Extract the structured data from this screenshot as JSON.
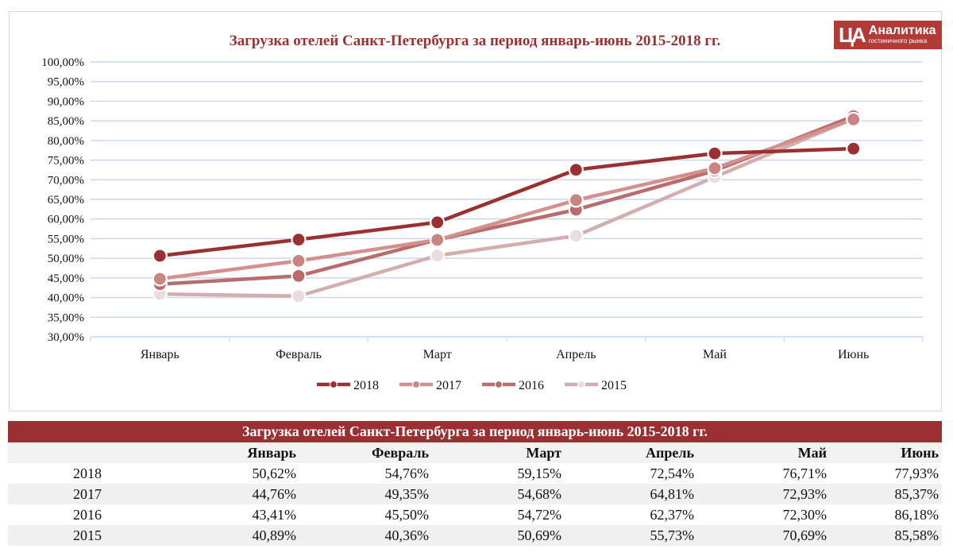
{
  "logo": {
    "mark": "ЦА",
    "title": "Аналитика",
    "subtitle": "гостиничного рынка"
  },
  "chart_data": {
    "type": "line",
    "title": "Загрузка отелей Санкт-Петербурга за период январь-июнь 2015-2018 гг.",
    "categories": [
      "Январь",
      "Февраль",
      "Март",
      "Апрель",
      "Май",
      "Июнь"
    ],
    "ylim": [
      30,
      100
    ],
    "ytick_step": 5,
    "ytick_labels": [
      "30,00%",
      "35,00%",
      "40,00%",
      "45,00%",
      "50,00%",
      "55,00%",
      "60,00%",
      "65,00%",
      "70,00%",
      "75,00%",
      "80,00%",
      "85,00%",
      "90,00%",
      "95,00%",
      "100,00%"
    ],
    "grid": true,
    "legend_position": "bottom",
    "series": [
      {
        "name": "2015",
        "color": "#d3aeae",
        "marker": "#e9dede",
        "values": [
          40.89,
          40.36,
          50.69,
          55.73,
          70.69,
          85.58
        ]
      },
      {
        "name": "2016",
        "color": "#b86c6c",
        "marker": "#b86c6c",
        "values": [
          43.41,
          45.5,
          54.72,
          62.37,
          72.3,
          86.18
        ]
      },
      {
        "name": "2017",
        "color": "#d4908c",
        "marker": "#c88582",
        "values": [
          44.76,
          49.35,
          54.68,
          64.81,
          72.93,
          85.37
        ]
      },
      {
        "name": "2018",
        "color": "#9b3033",
        "marker": "#9b3033",
        "values": [
          50.62,
          54.76,
          59.15,
          72.54,
          76.71,
          77.93
        ]
      }
    ],
    "legend_order": [
      3,
      2,
      1,
      0
    ]
  },
  "table": {
    "caption": "Загрузка отелей Санкт-Петербурга за период январь-июнь 2015-2018 гг.",
    "headers": [
      "",
      "Январь",
      "Февраль",
      "Март",
      "Апрель",
      "Май",
      "Июнь"
    ],
    "rows": [
      [
        "2018",
        "50,62%",
        "54,76%",
        "59,15%",
        "72,54%",
        "76,71%",
        "77,93%"
      ],
      [
        "2017",
        "44,76%",
        "49,35%",
        "54,68%",
        "64,81%",
        "72,93%",
        "85,37%"
      ],
      [
        "2016",
        "43,41%",
        "45,50%",
        "54,72%",
        "62,37%",
        "72,30%",
        "86,18%"
      ],
      [
        "2015",
        "40,89%",
        "40,36%",
        "50,69%",
        "55,73%",
        "70,69%",
        "85,58%"
      ]
    ]
  }
}
